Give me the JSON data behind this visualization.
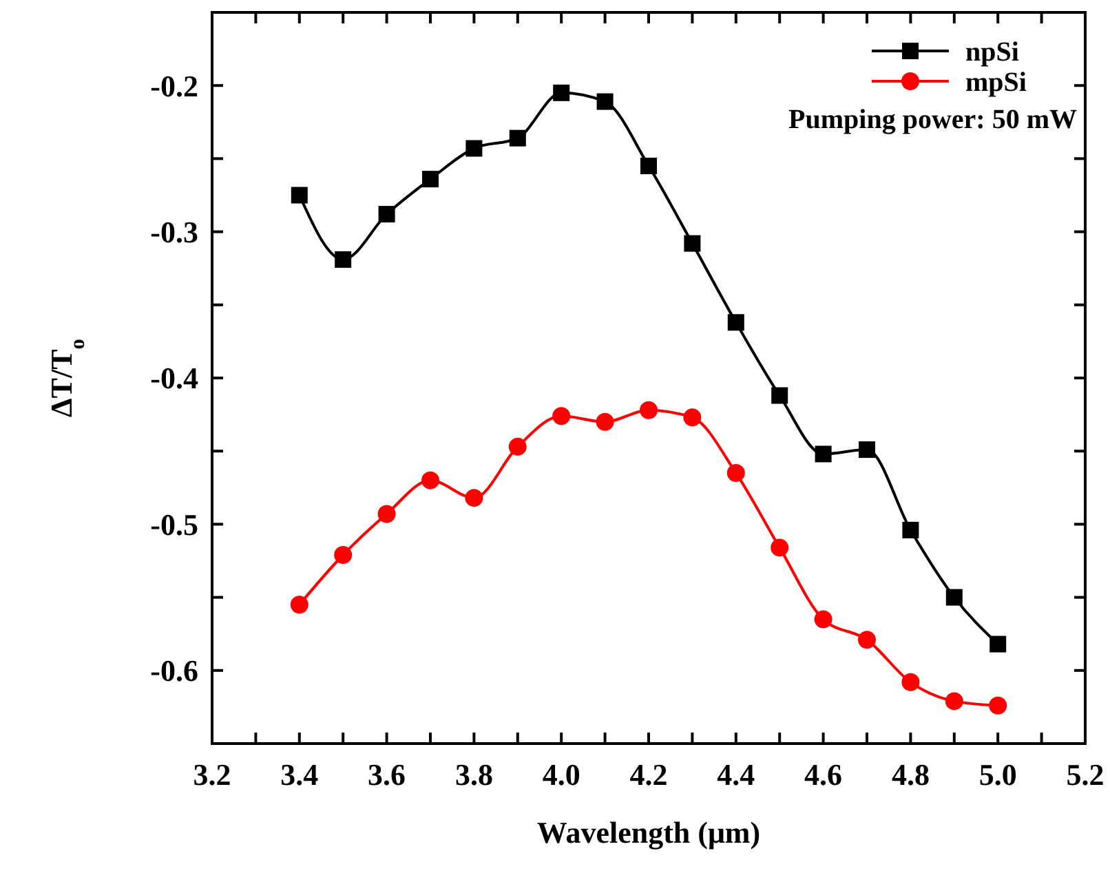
{
  "chart_data": {
    "type": "line",
    "xlabel": "Wavelength (μm)",
    "ylabel": "ΔT/T$_{o}$",
    "x": [
      3.4,
      3.5,
      3.6,
      3.7,
      3.8,
      3.9,
      4.0,
      4.1,
      4.2,
      4.3,
      4.4,
      4.5,
      4.6,
      4.7,
      4.8,
      4.9,
      5.0
    ],
    "series": [
      {
        "name": "npSi",
        "color": "#000000",
        "marker": "square",
        "values": [
          -0.275,
          -0.319,
          -0.288,
          -0.264,
          -0.243,
          -0.236,
          -0.205,
          -0.211,
          -0.255,
          -0.308,
          -0.362,
          -0.412,
          -0.452,
          -0.449,
          -0.504,
          -0.55,
          -0.582
        ]
      },
      {
        "name": "mpSi",
        "color": "#ff0000",
        "marker": "circle",
        "values": [
          -0.555,
          -0.521,
          -0.493,
          -0.47,
          -0.482,
          -0.447,
          -0.426,
          -0.43,
          -0.422,
          -0.427,
          -0.465,
          -0.516,
          -0.565,
          -0.579,
          -0.608,
          -0.621,
          -0.624
        ]
      }
    ],
    "xlim": [
      3.2,
      5.2
    ],
    "xticks": [
      {
        "value": 3.2,
        "label": "3.2"
      },
      {
        "value": 3.3,
        "label": null
      },
      {
        "value": 3.4,
        "label": "3.4"
      },
      {
        "value": 3.5,
        "label": null
      },
      {
        "value": 3.6,
        "label": "3.6"
      },
      {
        "value": 3.7,
        "label": null
      },
      {
        "value": 3.8,
        "label": "3.8"
      },
      {
        "value": 3.9,
        "label": null
      },
      {
        "value": 4.0,
        "label": "4.0"
      },
      {
        "value": 4.1,
        "label": null
      },
      {
        "value": 4.2,
        "label": "4.2"
      },
      {
        "value": 4.3,
        "label": null
      },
      {
        "value": 4.4,
        "label": "4.4"
      },
      {
        "value": 4.5,
        "label": null
      },
      {
        "value": 4.6,
        "label": "4.6"
      },
      {
        "value": 4.7,
        "label": null
      },
      {
        "value": 4.8,
        "label": "4.8"
      },
      {
        "value": 4.9,
        "label": null
      },
      {
        "value": 5.0,
        "label": "5.0"
      },
      {
        "value": 5.1,
        "label": null
      },
      {
        "value": 5.2,
        "label": "5.2"
      }
    ],
    "ylim": [
      -0.65,
      -0.15
    ],
    "yticks": [
      {
        "value": -0.6,
        "label": "-0.6"
      },
      {
        "value": -0.55,
        "label": null
      },
      {
        "value": -0.5,
        "label": "-0.5"
      },
      {
        "value": -0.45,
        "label": null
      },
      {
        "value": -0.4,
        "label": "-0.4"
      },
      {
        "value": -0.35,
        "label": null
      },
      {
        "value": -0.3,
        "label": "-0.3"
      },
      {
        "value": -0.25,
        "label": null
      },
      {
        "value": -0.2,
        "label": "-0.2"
      }
    ],
    "grid": false,
    "legend": "top right",
    "line_style": "solid",
    "annotations": [
      "Pumping power: 50 mW"
    ]
  }
}
